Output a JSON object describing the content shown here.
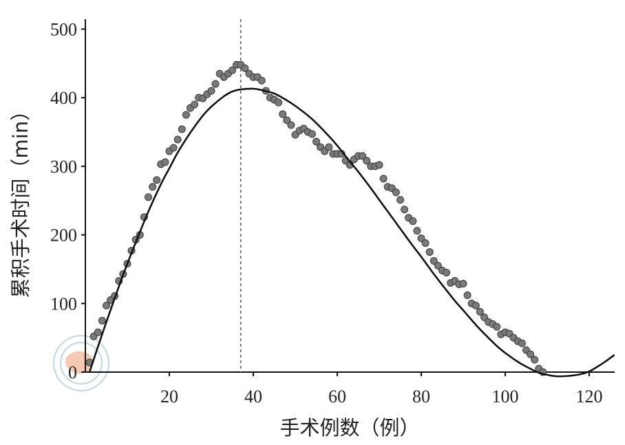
{
  "chart_data": {
    "type": "scatter",
    "xlabel": "手术例数（例）",
    "ylabel": "累积手术时间（min）",
    "xlim": [
      0,
      126
    ],
    "ylim": [
      0,
      510
    ],
    "x_ticks": [
      20,
      40,
      60,
      80,
      100,
      120
    ],
    "y_ticks": [
      0,
      100,
      200,
      300,
      400,
      500
    ],
    "reference_line_x": 37,
    "grid": false,
    "series": [
      {
        "kind": "points",
        "points": [
          [
            1,
            14
          ],
          [
            2,
            52
          ],
          [
            3,
            58
          ],
          [
            4,
            75
          ],
          [
            5,
            97
          ],
          [
            6,
            105
          ],
          [
            7,
            111
          ],
          [
            8,
            133
          ],
          [
            9,
            143
          ],
          [
            10,
            158
          ],
          [
            11,
            177
          ],
          [
            12,
            193
          ],
          [
            13,
            200
          ],
          [
            14,
            226
          ],
          [
            15,
            255
          ],
          [
            16,
            270
          ],
          [
            17,
            280
          ],
          [
            18,
            303
          ],
          [
            19,
            306
          ],
          [
            20,
            322
          ],
          [
            21,
            327
          ],
          [
            22,
            339
          ],
          [
            23,
            354
          ],
          [
            24,
            375
          ],
          [
            25,
            385
          ],
          [
            26,
            390
          ],
          [
            27,
            400
          ],
          [
            28,
            399
          ],
          [
            29,
            405
          ],
          [
            30,
            410
          ],
          [
            31,
            420
          ],
          [
            32,
            435
          ],
          [
            33,
            430
          ],
          [
            34,
            435
          ],
          [
            35,
            440
          ],
          [
            36,
            448
          ],
          [
            37,
            448
          ],
          [
            38,
            443
          ],
          [
            39,
            435
          ],
          [
            40,
            430
          ],
          [
            41,
            430
          ],
          [
            42,
            425
          ],
          [
            43,
            410
          ],
          [
            44,
            400
          ],
          [
            45,
            397
          ],
          [
            46,
            393
          ],
          [
            47,
            376
          ],
          [
            48,
            367
          ],
          [
            49,
            360
          ],
          [
            50,
            346
          ],
          [
            51,
            352
          ],
          [
            52,
            355
          ],
          [
            53,
            350
          ],
          [
            54,
            347
          ],
          [
            55,
            336
          ],
          [
            56,
            328
          ],
          [
            57,
            322
          ],
          [
            58,
            328
          ],
          [
            59,
            318
          ],
          [
            60,
            318
          ],
          [
            61,
            318
          ],
          [
            62,
            308
          ],
          [
            63,
            302
          ],
          [
            64,
            310
          ],
          [
            65,
            315
          ],
          [
            66,
            315
          ],
          [
            67,
            308
          ],
          [
            68,
            300
          ],
          [
            69,
            300
          ],
          [
            70,
            302
          ],
          [
            71,
            282
          ],
          [
            72,
            270
          ],
          [
            73,
            268
          ],
          [
            74,
            262
          ],
          [
            75,
            251
          ],
          [
            76,
            237
          ],
          [
            77,
            225
          ],
          [
            78,
            220
          ],
          [
            79,
            206
          ],
          [
            80,
            195
          ],
          [
            81,
            188
          ],
          [
            82,
            175
          ],
          [
            83,
            162
          ],
          [
            84,
            155
          ],
          [
            85,
            148
          ],
          [
            86,
            145
          ],
          [
            87,
            130
          ],
          [
            88,
            133
          ],
          [
            89,
            128
          ],
          [
            90,
            129
          ],
          [
            91,
            112
          ],
          [
            92,
            100
          ],
          [
            93,
            97
          ],
          [
            94,
            88
          ],
          [
            95,
            80
          ],
          [
            96,
            73
          ],
          [
            97,
            70
          ],
          [
            98,
            66
          ],
          [
            99,
            55
          ],
          [
            100,
            58
          ],
          [
            101,
            56
          ],
          [
            102,
            50
          ],
          [
            103,
            45
          ],
          [
            104,
            42
          ],
          [
            105,
            32
          ],
          [
            106,
            26
          ],
          [
            107,
            18
          ],
          [
            108,
            5
          ],
          [
            109,
            0
          ]
        ]
      },
      {
        "kind": "fit-curve",
        "x": [
          1,
          3,
          5,
          8,
          10,
          12,
          15,
          18,
          20,
          22,
          25,
          28,
          30,
          33,
          35,
          37,
          40,
          42,
          45,
          48,
          50,
          53,
          55,
          58,
          60,
          63,
          65,
          68,
          70,
          73,
          75,
          78,
          80,
          83,
          85,
          88,
          90,
          93,
          95,
          98,
          100,
          103,
          105,
          108,
          110,
          112,
          114,
          116,
          118,
          120,
          122,
          124,
          126
        ],
        "y": [
          0,
          37,
          73,
          125,
          158,
          189,
          234,
          274,
          297,
          320,
          349,
          374,
          387,
          402,
          409,
          412,
          413,
          411,
          406,
          396,
          388,
          374,
          363,
          344,
          330,
          307,
          292,
          268,
          251,
          226,
          209,
          184,
          168,
          143,
          127,
          104,
          90,
          69,
          56,
          38,
          28,
          15,
          8,
          -1,
          -4,
          -6,
          -6,
          -5,
          -3,
          1,
          8,
          16,
          25
        ]
      }
    ]
  }
}
